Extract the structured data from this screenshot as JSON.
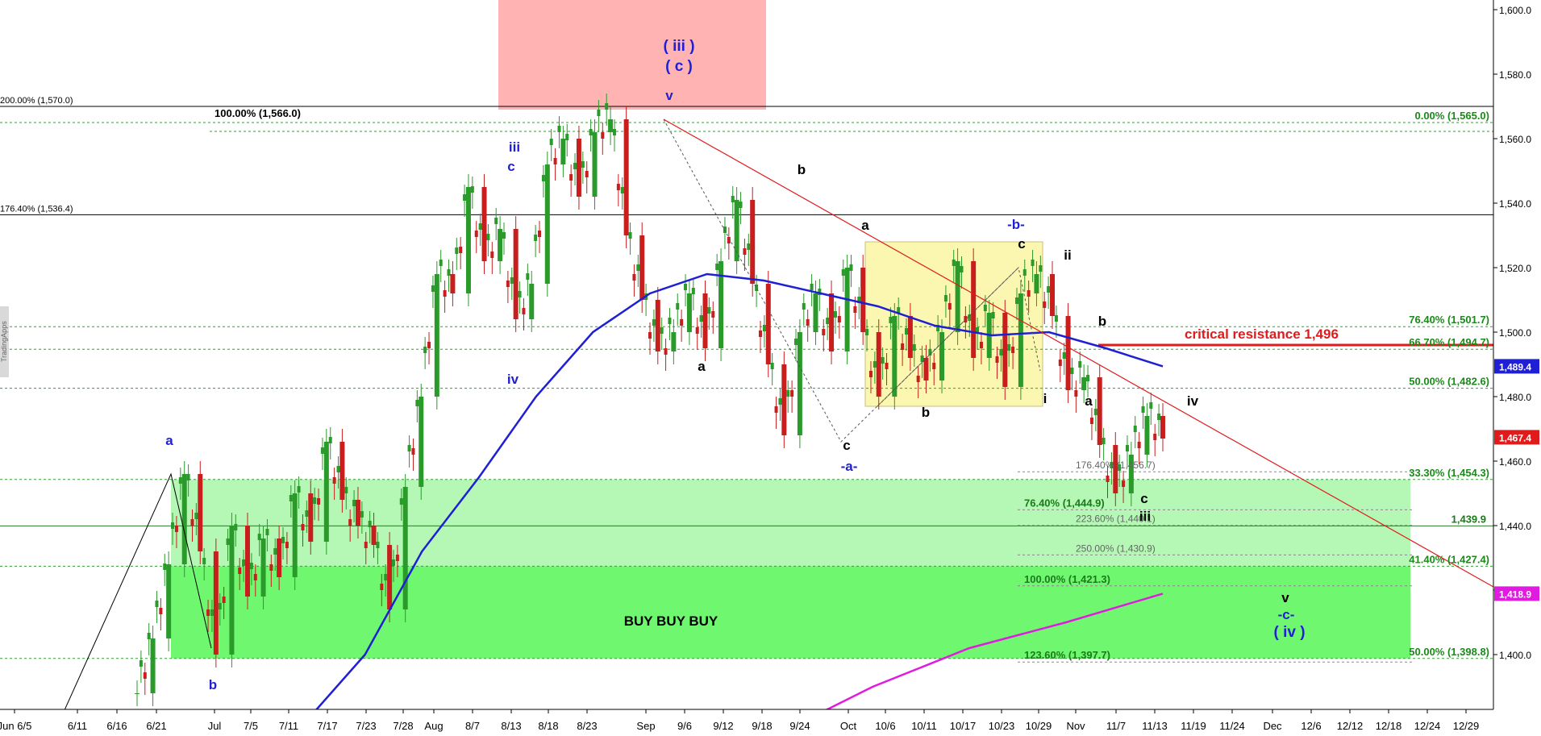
{
  "chart_data": {
    "type": "candlestick",
    "title": "",
    "watermark": "TradingApps",
    "y_axis": {
      "min": 1380,
      "max": 1600,
      "ticks": [
        "1,400.0",
        "1,420.0",
        "1,440.0",
        "1,460.0",
        "1,480.0",
        "1,500.0",
        "1,520.0",
        "1,540.0",
        "1,560.0",
        "1,580.0",
        "1,600.0"
      ],
      "side": "right"
    },
    "x_axis": {
      "ticks": [
        "Jun 6/5",
        "6/11",
        "6/16",
        "6/21",
        "Jul",
        "7/5",
        "7/11",
        "7/17",
        "7/23",
        "7/28",
        "Aug",
        "8/7",
        "8/13",
        "8/18",
        "8/23",
        "Sep",
        "9/6",
        "9/12",
        "9/18",
        "9/24",
        "Oct",
        "10/6",
        "10/11",
        "10/17",
        "10/23",
        "10/29",
        "Nov",
        "11/7",
        "11/13",
        "11/19",
        "11/24",
        "Dec",
        "12/6",
        "12/12",
        "12/18",
        "12/24",
        "12/29"
      ]
    },
    "price_badges": [
      {
        "value": 1489.4,
        "label": "1,489.4",
        "color": "#1f1fd4"
      },
      {
        "value": 1467.4,
        "label": "1,467.4",
        "color": "#e01b1b"
      },
      {
        "value": 1418.9,
        "label": "1,418.9",
        "color": "#e01be0"
      }
    ],
    "fib_levels": [
      {
        "value": 1565.0,
        "label": "0.00% (1,565.0)"
      },
      {
        "value": 1501.7,
        "label": "76.40% (1,501.7)"
      },
      {
        "value": 1494.7,
        "label": "66.70% (1,494.7)"
      },
      {
        "value": 1482.6,
        "label": "50.00% (1,482.6)"
      },
      {
        "value": 1454.3,
        "label": "33.30% (1,454.3)"
      },
      {
        "value": 1427.4,
        "label": "41.40% (1,427.4)"
      },
      {
        "value": 1398.8,
        "label": "50.00% (1,398.8)"
      }
    ],
    "left_levels": [
      {
        "value": 1570.0,
        "label": "200.00% (1,570.0)"
      },
      {
        "value": 1536.4,
        "label": "176.40% (1,536.4)"
      }
    ],
    "projection_levels": [
      {
        "value": 1566.0,
        "label": "100.00% (1,566.0)"
      },
      {
        "value": 1456.7,
        "label": "176.40% (1,456.7)"
      },
      {
        "value": 1444.9,
        "label": "76.40% (1,444.9)"
      },
      {
        "value": 1440.1,
        "label": "223.60% (1,440.1)"
      },
      {
        "value": 1430.9,
        "label": "250.00% (1,430.9)"
      },
      {
        "value": 1421.3,
        "label": "100.00% (1,421.3)"
      },
      {
        "value": 1397.7,
        "label": "123.60% (1,397.7)"
      }
    ],
    "horizontal_level": {
      "value": 1439.9,
      "label": "1,439.9"
    },
    "critical_resistance": {
      "value": 1496,
      "label": "critical resistance 1,496"
    },
    "zone_label": "BUY BUY BUY",
    "wave_labels": [
      {
        "text": "a",
        "color": "blue"
      },
      {
        "text": "b",
        "color": "blue"
      },
      {
        "text": "iii",
        "color": "blue"
      },
      {
        "text": "c",
        "color": "blue"
      },
      {
        "text": "iv",
        "color": "blue"
      },
      {
        "text": "( iii )",
        "color": "blue"
      },
      {
        "text": "( c )",
        "color": "blue"
      },
      {
        "text": "v",
        "color": "blue"
      },
      {
        "text": "b",
        "color": "black"
      },
      {
        "text": "a",
        "color": "black"
      },
      {
        "text": "c",
        "color": "black"
      },
      {
        "text": "-a-",
        "color": "blue"
      },
      {
        "text": "a",
        "color": "black"
      },
      {
        "text": "b",
        "color": "black"
      },
      {
        "text": "-b-",
        "color": "blue"
      },
      {
        "text": "c",
        "color": "black"
      },
      {
        "text": "i",
        "color": "black"
      },
      {
        "text": "ii",
        "color": "black"
      },
      {
        "text": "b",
        "color": "black"
      },
      {
        "text": "a",
        "color": "black"
      },
      {
        "text": "iv",
        "color": "black"
      },
      {
        "text": "c",
        "color": "black"
      },
      {
        "text": "iii",
        "color": "black"
      },
      {
        "text": "v",
        "color": "black"
      },
      {
        "text": "-c-",
        "color": "blue"
      },
      {
        "text": "( iv )",
        "color": "blue"
      }
    ],
    "price_path": [
      1388,
      1405,
      1428,
      1456,
      1432,
      1400,
      1440,
      1418,
      1436,
      1424,
      1450,
      1435,
      1466,
      1448,
      1440,
      1434,
      1414,
      1452,
      1480,
      1518,
      1512,
      1545,
      1522,
      1532,
      1504,
      1515,
      1552,
      1560,
      1542,
      1562,
      1566,
      1530,
      1510,
      1494,
      1500,
      1512,
      1495,
      1522,
      1541,
      1515,
      1490,
      1468,
      1500,
      1512,
      1494,
      1520,
      1500,
      1480,
      1505,
      1492,
      1485,
      1500,
      1522,
      1492,
      1506,
      1483,
      1512,
      1518,
      1505,
      1482,
      1486,
      1465,
      1450,
      1462,
      1474,
      1467
    ],
    "ma_blue_path": [
      1380,
      1400,
      1432,
      1455,
      1480,
      1500,
      1512,
      1518,
      1516,
      1512,
      1508,
      1502,
      1499,
      1500,
      1495,
      1489.4
    ],
    "ma_magenta_path": [
      1375,
      1390,
      1402,
      1410,
      1418.9
    ]
  }
}
